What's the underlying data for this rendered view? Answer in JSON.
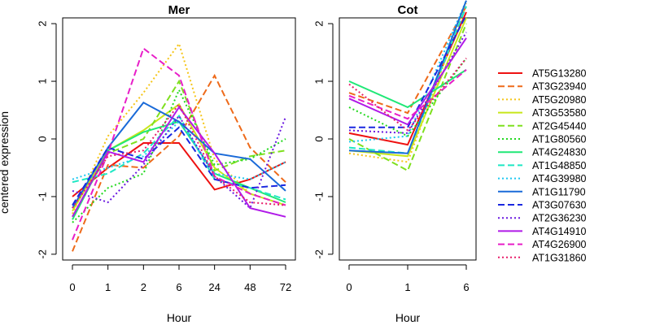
{
  "chart_data": [
    {
      "type": "line",
      "title": "Mer",
      "xlabel": "Hour",
      "ylabel": "centered expression",
      "categories": [
        "0",
        "1",
        "2",
        "6",
        "24",
        "48",
        "72"
      ],
      "ylim": [
        -2.1,
        2.1
      ],
      "yticks": [
        "-2",
        "-1",
        "0",
        "1",
        "2"
      ],
      "series": [
        {
          "name": "AT5G13280",
          "values": [
            -1.0,
            -0.5,
            -0.07,
            -0.07,
            -0.88,
            -0.7,
            -0.4
          ]
        },
        {
          "name": "AT3G23940",
          "values": [
            -1.95,
            -0.45,
            -0.5,
            0.05,
            1.1,
            -0.15,
            -0.75
          ]
        },
        {
          "name": "AT5G20980",
          "values": [
            -1.3,
            0.05,
            0.8,
            1.65,
            -0.35,
            -0.95,
            -1.15
          ]
        },
        {
          "name": "AT3G53580",
          "values": [
            -1.25,
            -0.2,
            0.15,
            0.6,
            -0.5,
            -0.95,
            -1.15
          ]
        },
        {
          "name": "AT2G45440",
          "values": [
            -1.35,
            -0.25,
            0.0,
            1.0,
            -0.55,
            -0.3,
            -0.2
          ]
        },
        {
          "name": "AT1G80560",
          "values": [
            -1.45,
            -0.85,
            -0.6,
            0.85,
            -0.45,
            -0.35,
            0.0
          ]
        },
        {
          "name": "AT4G24830",
          "values": [
            -1.4,
            -0.2,
            0.12,
            0.3,
            -0.6,
            -0.85,
            -1.1
          ]
        },
        {
          "name": "AT1G48850",
          "values": [
            -0.75,
            -0.6,
            -0.25,
            0.4,
            -0.7,
            -0.85,
            -1.05
          ]
        },
        {
          "name": "AT4G39980",
          "values": [
            -0.7,
            -0.5,
            -0.3,
            0.3,
            -0.6,
            -0.7,
            -0.4
          ]
        },
        {
          "name": "AT1G11790",
          "values": [
            -1.2,
            -0.15,
            0.63,
            0.3,
            -0.25,
            -0.35,
            -0.9
          ]
        },
        {
          "name": "AT3G07630",
          "values": [
            -1.15,
            -0.15,
            -0.35,
            0.2,
            -0.7,
            -0.85,
            -0.8
          ]
        },
        {
          "name": "AT2G36230",
          "values": [
            -0.9,
            -1.1,
            -0.45,
            0.4,
            -0.65,
            -1.2,
            0.38
          ]
        },
        {
          "name": "AT4G14910",
          "values": [
            -1.35,
            -0.22,
            -0.4,
            0.55,
            -0.25,
            -1.2,
            -1.35
          ]
        },
        {
          "name": "AT4G26900",
          "values": [
            -1.75,
            -0.25,
            1.57,
            1.1,
            -0.65,
            -0.95,
            -1.15
          ]
        },
        {
          "name": "AT1G31860",
          "values": [
            -1.2,
            -0.3,
            -0.2,
            0.6,
            -0.65,
            -1.1,
            -1.15
          ]
        }
      ]
    },
    {
      "type": "line",
      "title": "Cot",
      "xlabel": "Hour",
      "ylabel": "",
      "categories": [
        "0",
        "1",
        "6"
      ],
      "ylim": [
        -2.1,
        2.1
      ],
      "yticks": [
        "-2",
        "-1",
        "0",
        "1",
        "2"
      ],
      "series": [
        {
          "name": "AT5G13280",
          "values": [
            0.1,
            -0.1,
            2.2
          ]
        },
        {
          "name": "AT3G23940",
          "values": [
            0.8,
            0.45,
            2.3
          ]
        },
        {
          "name": "AT5G20980",
          "values": [
            -0.25,
            -0.4,
            2.35
          ]
        },
        {
          "name": "AT3G53580",
          "values": [
            -0.2,
            -0.3,
            2.1
          ]
        },
        {
          "name": "AT2G45440",
          "values": [
            0.0,
            -0.55,
            2.0
          ]
        },
        {
          "name": "AT1G80560",
          "values": [
            0.55,
            0.05,
            1.4
          ]
        },
        {
          "name": "AT4G24830",
          "values": [
            1.0,
            0.55,
            1.2
          ]
        },
        {
          "name": "AT1G48850",
          "values": [
            -0.15,
            -0.25,
            2.3
          ]
        },
        {
          "name": "AT4G39980",
          "values": [
            -0.05,
            0.05,
            2.4
          ]
        },
        {
          "name": "AT1G11790",
          "values": [
            -0.2,
            -0.25,
            2.4
          ]
        },
        {
          "name": "AT3G07630",
          "values": [
            0.2,
            0.2,
            2.15
          ]
        },
        {
          "name": "AT2G36230",
          "values": [
            0.15,
            0.1,
            1.85
          ]
        },
        {
          "name": "AT4G14910",
          "values": [
            0.7,
            0.25,
            1.75
          ]
        },
        {
          "name": "AT4G26900",
          "values": [
            0.75,
            0.35,
            1.2
          ]
        },
        {
          "name": "AT1G31860",
          "values": [
            0.95,
            0.15,
            1.4
          ]
        }
      ]
    }
  ],
  "legend": {
    "placement": "right",
    "items": [
      {
        "label": "AT5G13280",
        "color": "#ee1111",
        "dash": "solid"
      },
      {
        "label": "AT3G23940",
        "color": "#ee6a1a",
        "dash": "dashed"
      },
      {
        "label": "AT5G20980",
        "color": "#f5c518",
        "dash": "dotted"
      },
      {
        "label": "AT3G53580",
        "color": "#c8e61a",
        "dash": "solid"
      },
      {
        "label": "AT2G45440",
        "color": "#7ee01e",
        "dash": "dashed"
      },
      {
        "label": "AT1G80560",
        "color": "#22d81e",
        "dash": "dotted"
      },
      {
        "label": "AT4G24830",
        "color": "#1fe876",
        "dash": "solid"
      },
      {
        "label": "AT1G48850",
        "color": "#1ee8c4",
        "dash": "dashed"
      },
      {
        "label": "AT4G39980",
        "color": "#1ec8f0",
        "dash": "dotted"
      },
      {
        "label": "AT1G11790",
        "color": "#1a6ad8",
        "dash": "solid"
      },
      {
        "label": "AT3G07630",
        "color": "#1a28e0",
        "dash": "dashed"
      },
      {
        "label": "AT2G36230",
        "color": "#6a18e0",
        "dash": "dotted"
      },
      {
        "label": "AT4G14910",
        "color": "#b01ae8",
        "dash": "solid"
      },
      {
        "label": "AT4G26900",
        "color": "#e81ec8",
        "dash": "dashed"
      },
      {
        "label": "AT1G31860",
        "color": "#e81e6a",
        "dash": "dotted"
      }
    ]
  }
}
